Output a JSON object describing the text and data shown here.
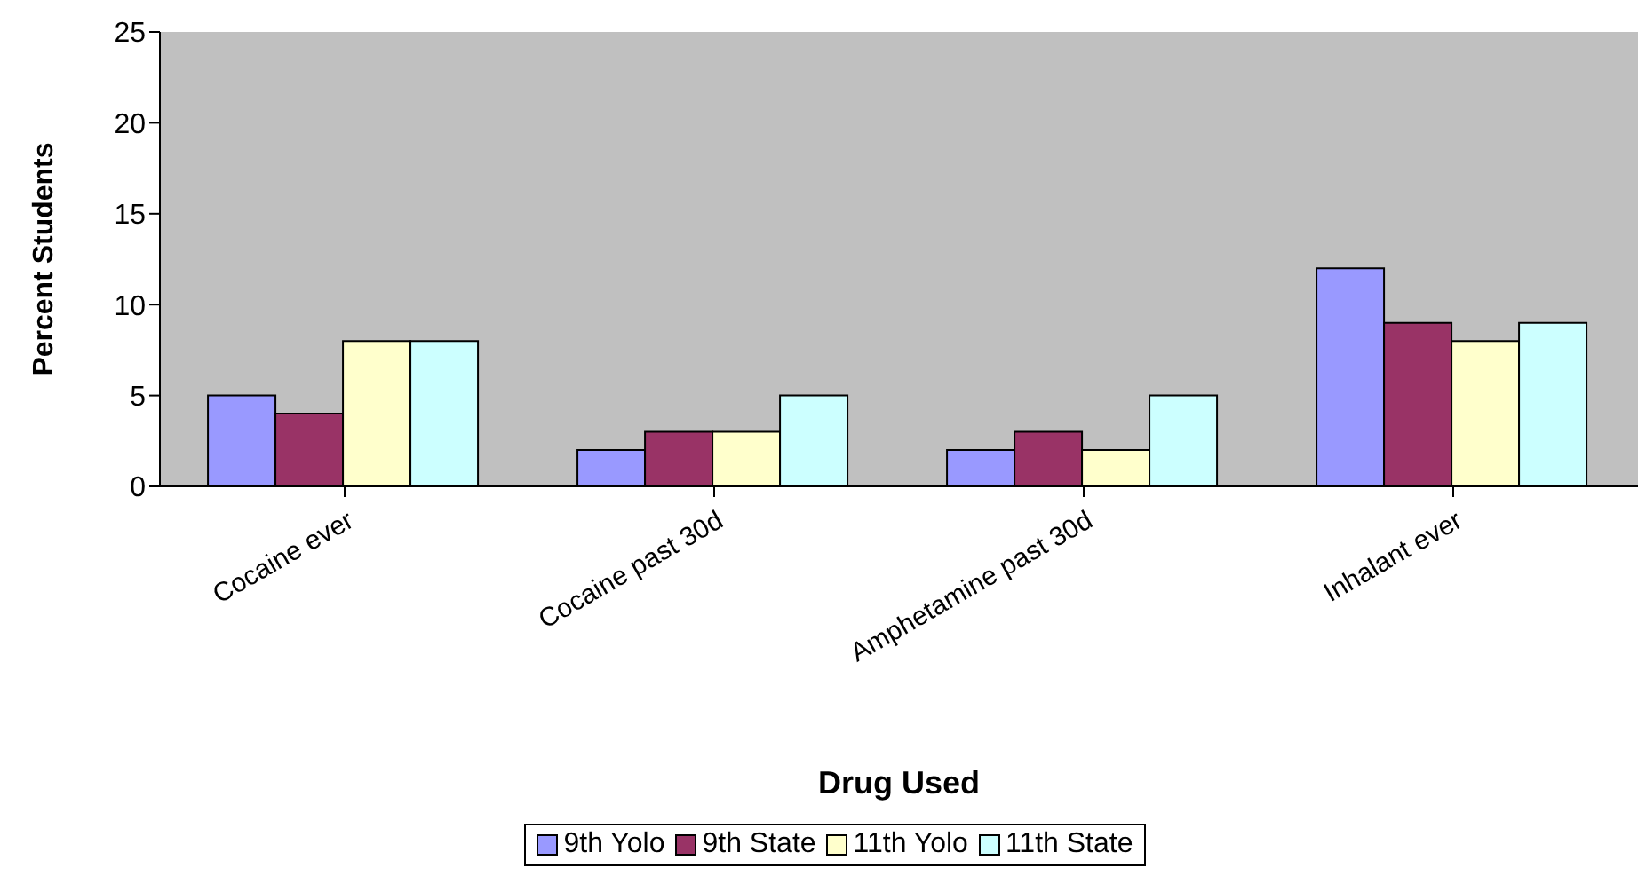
{
  "chart_data": {
    "type": "bar",
    "xlabel": "Drug Used",
    "ylabel": "Percent Students",
    "categories": [
      "Cocaine ever",
      "Cocaine past 30d",
      "Amphetamine past 30d",
      "Inhalant ever"
    ],
    "series": [
      {
        "name": "9th Yolo",
        "color": "#9999ff",
        "values": [
          5,
          2,
          2,
          12
        ]
      },
      {
        "name": "9th State",
        "color": "#993366",
        "values": [
          4,
          3,
          3,
          9
        ]
      },
      {
        "name": "11th Yolo",
        "color": "#ffffcc",
        "values": [
          8,
          3,
          2,
          8
        ]
      },
      {
        "name": "11th State",
        "color": "#ccffff",
        "values": [
          8,
          5,
          5,
          9
        ]
      }
    ],
    "ylim": [
      0,
      25
    ],
    "yticks": [
      0,
      5,
      10,
      15,
      20,
      25
    ],
    "grid": false,
    "legend": "bottom"
  }
}
